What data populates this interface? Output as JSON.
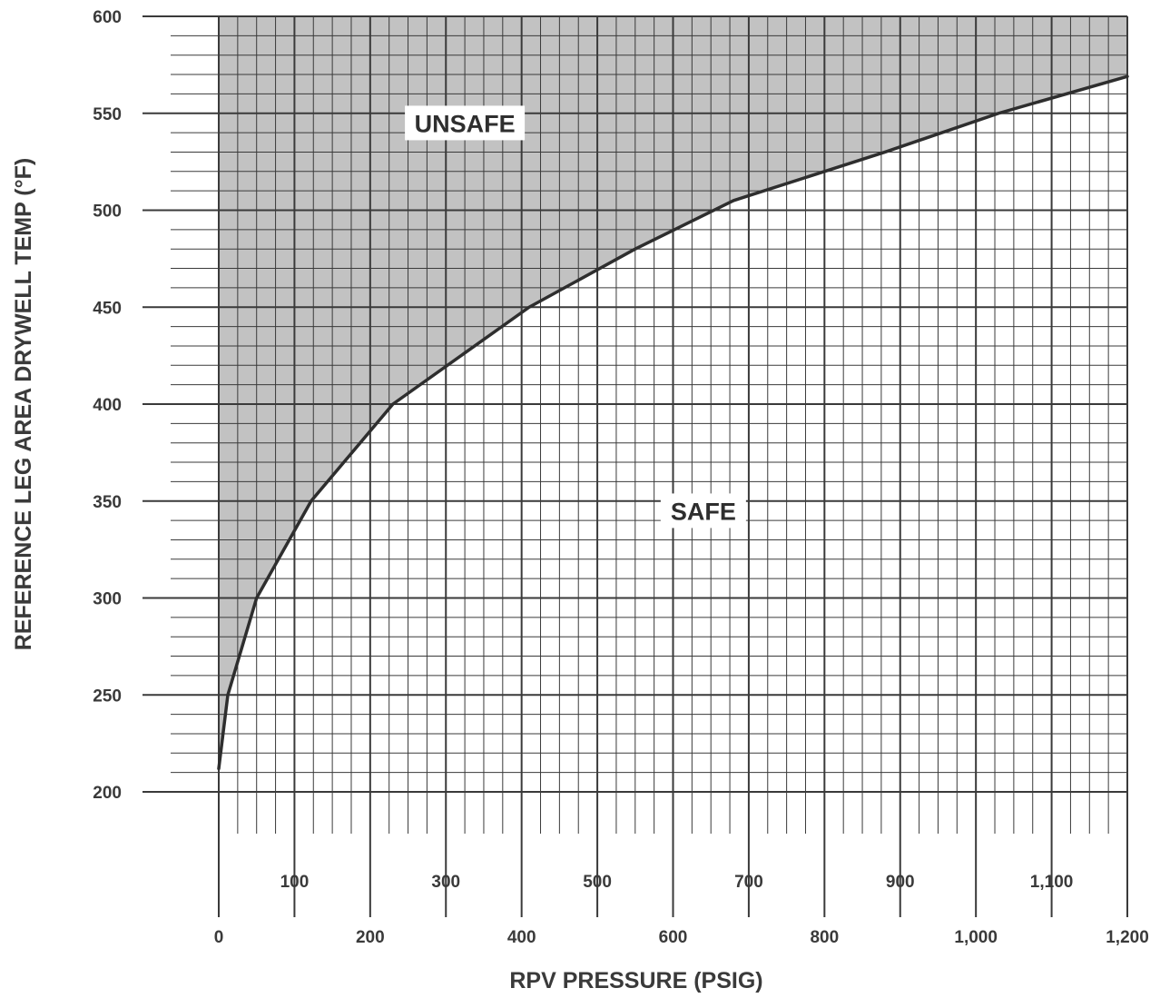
{
  "chart_data": {
    "type": "area",
    "xlabel": "RPV PRESSURE (PSIG)",
    "ylabel": "REFERENCE LEG AREA DRYWELL TEMP (°F)",
    "xlim": [
      0,
      1200
    ],
    "ylim": [
      200,
      600
    ],
    "x_ticks_lower": [
      "0",
      "200",
      "400",
      "600",
      "800",
      "1,000",
      "1,200"
    ],
    "x_tick_values_lower": [
      0,
      200,
      400,
      600,
      800,
      1000,
      1200
    ],
    "x_ticks_upper": [
      "100",
      "300",
      "500",
      "700",
      "900",
      "1,100"
    ],
    "x_tick_values_upper": [
      100,
      300,
      500,
      700,
      900,
      1100
    ],
    "y_ticks": [
      "200",
      "250",
      "300",
      "350",
      "400",
      "450",
      "500",
      "550",
      "600"
    ],
    "y_tick_values": [
      200,
      250,
      300,
      350,
      400,
      450,
      500,
      550,
      600
    ],
    "grid": true,
    "x_minor_step": 25,
    "y_minor_step": 10,
    "boundary": {
      "x": [
        0,
        12,
        50,
        122,
        230,
        410,
        550,
        680,
        800,
        880,
        1030,
        1200
      ],
      "y": [
        212,
        250,
        300,
        350,
        400,
        450,
        480,
        505,
        520,
        530,
        550,
        569
      ]
    },
    "regions": [
      {
        "label": "UNSAFE",
        "x": 325,
        "y": 545
      },
      {
        "label": "SAFE",
        "x": 640,
        "y": 345
      }
    ],
    "colors": {
      "unsafe_fill": "#c2c2c2",
      "grid": "#3a3a3a",
      "curve": "#2e2e2e",
      "text": "#3a3a3a"
    }
  }
}
